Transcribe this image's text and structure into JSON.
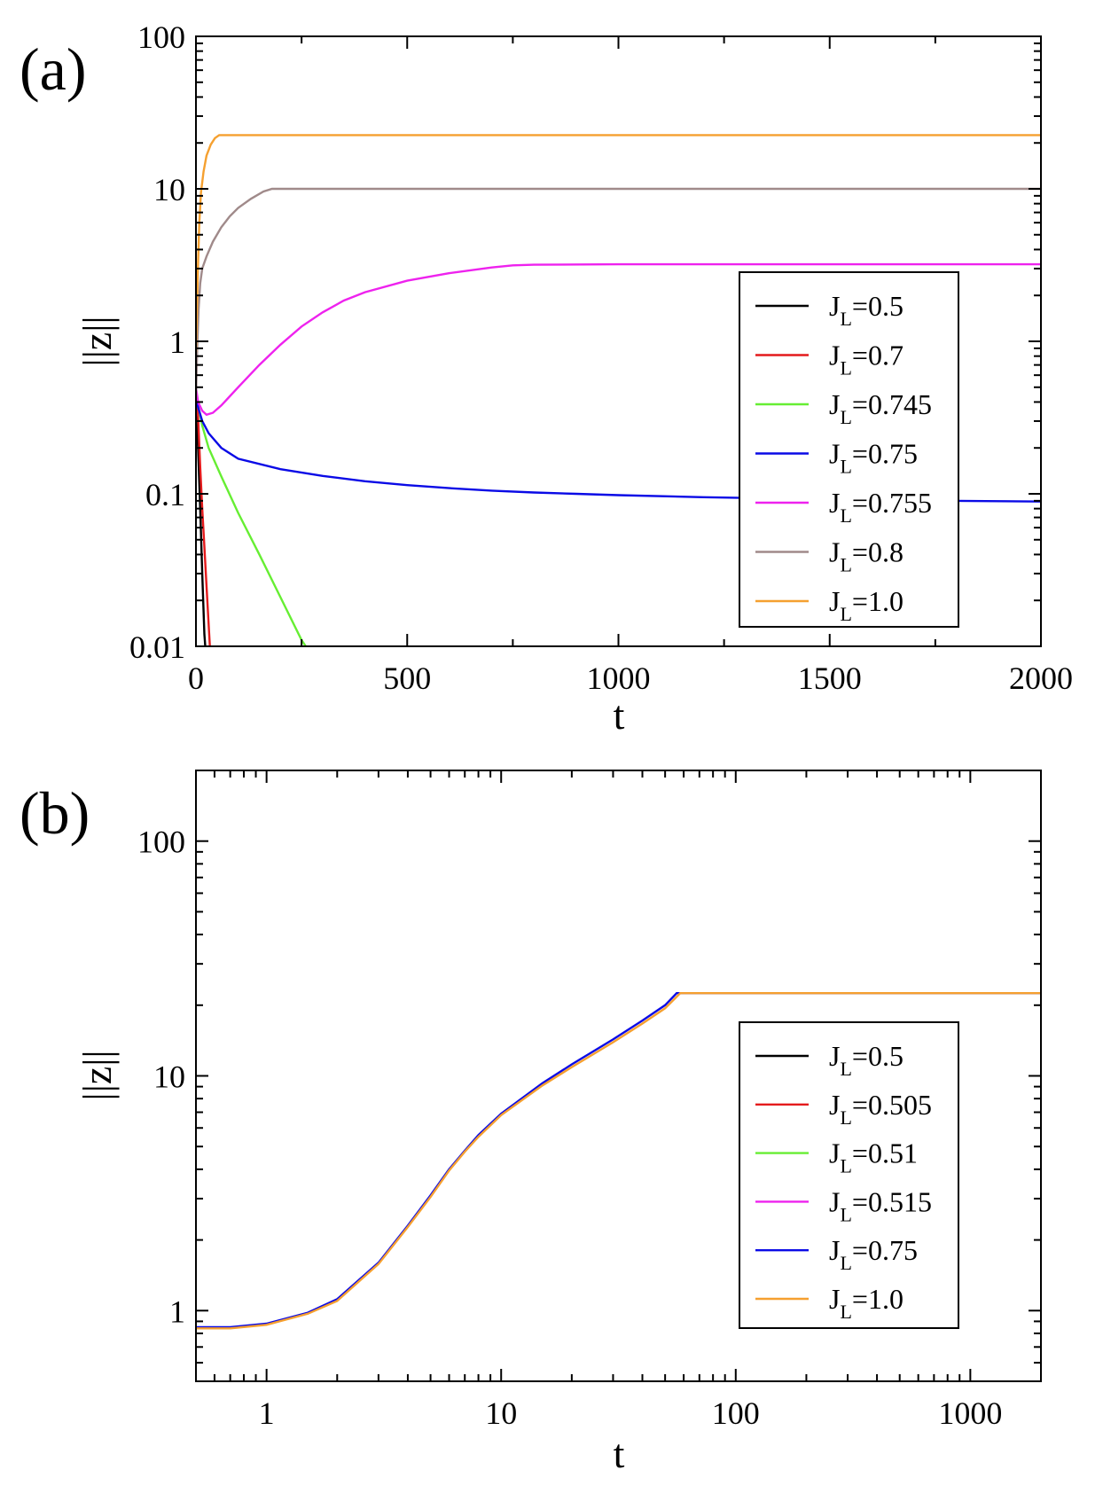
{
  "chart_data": [
    {
      "panel_label": "(a)",
      "type": "line",
      "xlabel": "t",
      "ylabel": "||z||",
      "xscale": "linear",
      "yscale": "log",
      "xlim": [
        0,
        2000
      ],
      "ylim": [
        0.01,
        100
      ],
      "xticks": [
        0,
        500,
        1000,
        1500,
        2000
      ],
      "xtick_labels": [
        "0",
        "500",
        "1000",
        "1500",
        "2000"
      ],
      "yticks": [
        0.01,
        0.1,
        1,
        10,
        100
      ],
      "ytick_labels": [
        "0.01",
        "0.1",
        "1",
        "10",
        "100"
      ],
      "legend_position": "right",
      "series": [
        {
          "name": "J_L=0.5",
          "label_main": "J",
          "label_sub": "L",
          "label_val": "=0.5",
          "color": "#000000",
          "points": [
            [
              0,
              0.42
            ],
            [
              5,
              0.2
            ],
            [
              10,
              0.08
            ],
            [
              15,
              0.03
            ],
            [
              20,
              0.012
            ],
            [
              22,
              0.01
            ]
          ]
        },
        {
          "name": "J_L=0.7",
          "label_main": "J",
          "label_sub": "L",
          "label_val": "=0.7",
          "color": "#e41a1c",
          "points": [
            [
              0,
              0.42
            ],
            [
              5,
              0.32
            ],
            [
              10,
              0.15
            ],
            [
              15,
              0.08
            ],
            [
              20,
              0.045
            ],
            [
              25,
              0.025
            ],
            [
              30,
              0.014
            ],
            [
              33,
              0.01
            ]
          ]
        },
        {
          "name": "J_L=0.745",
          "label_main": "J",
          "label_sub": "L",
          "label_val": "=0.745",
          "color": "#66ee33",
          "points": [
            [
              0,
              0.42
            ],
            [
              5,
              0.38
            ],
            [
              15,
              0.28
            ],
            [
              30,
              0.2
            ],
            [
              60,
              0.13
            ],
            [
              100,
              0.075
            ],
            [
              150,
              0.04
            ],
            [
              200,
              0.021
            ],
            [
              250,
              0.011
            ],
            [
              260,
              0.01
            ]
          ]
        },
        {
          "name": "J_L=0.75",
          "label_main": "J",
          "label_sub": "L",
          "label_val": "=0.75",
          "color": "#0a0ae6",
          "points": [
            [
              0,
              0.42
            ],
            [
              5,
              0.37
            ],
            [
              15,
              0.3
            ],
            [
              30,
              0.25
            ],
            [
              60,
              0.2
            ],
            [
              100,
              0.17
            ],
            [
              200,
              0.145
            ],
            [
              300,
              0.131
            ],
            [
              400,
              0.121
            ],
            [
              500,
              0.114
            ],
            [
              600,
              0.109
            ],
            [
              700,
              0.105
            ],
            [
              800,
              0.102
            ],
            [
              900,
              0.1
            ],
            [
              1000,
              0.098
            ],
            [
              1200,
              0.095
            ],
            [
              1400,
              0.093
            ],
            [
              1600,
              0.091
            ],
            [
              1800,
              0.09
            ],
            [
              2000,
              0.089
            ]
          ]
        },
        {
          "name": "J_L=0.755",
          "label_main": "J",
          "label_sub": "L",
          "label_val": "=0.755",
          "color": "#ee22ee",
          "points": [
            [
              0,
              0.5
            ],
            [
              5,
              0.4
            ],
            [
              15,
              0.35
            ],
            [
              25,
              0.33
            ],
            [
              40,
              0.34
            ],
            [
              60,
              0.38
            ],
            [
              100,
              0.5
            ],
            [
              150,
              0.7
            ],
            [
              200,
              0.95
            ],
            [
              250,
              1.25
            ],
            [
              300,
              1.55
            ],
            [
              350,
              1.85
            ],
            [
              400,
              2.1
            ],
            [
              500,
              2.5
            ],
            [
              600,
              2.8
            ],
            [
              700,
              3.05
            ],
            [
              750,
              3.15
            ],
            [
              800,
              3.18
            ],
            [
              1000,
              3.2
            ],
            [
              2000,
              3.2
            ]
          ]
        },
        {
          "name": "J_L=0.8",
          "label_main": "J",
          "label_sub": "L",
          "label_val": "=0.8",
          "color": "#a08a8a",
          "points": [
            [
              0,
              0.42
            ],
            [
              3,
              0.9
            ],
            [
              6,
              1.6
            ],
            [
              10,
              2.4
            ],
            [
              15,
              3.0
            ],
            [
              25,
              3.6
            ],
            [
              40,
              4.5
            ],
            [
              60,
              5.6
            ],
            [
              80,
              6.6
            ],
            [
              100,
              7.5
            ],
            [
              130,
              8.6
            ],
            [
              160,
              9.6
            ],
            [
              180,
              10
            ],
            [
              2000,
              10
            ]
          ]
        },
        {
          "name": "J_L=1.0",
          "label_main": "J",
          "label_sub": "L",
          "label_val": "=1.0",
          "color": "#f5a030",
          "points": [
            [
              0,
              0.85
            ],
            [
              2,
              1.5
            ],
            [
              5,
              3.3
            ],
            [
              8,
              6
            ],
            [
              12,
              9.5
            ],
            [
              18,
              13
            ],
            [
              25,
              16.5
            ],
            [
              35,
              19.5
            ],
            [
              45,
              21.5
            ],
            [
              55,
              22.5
            ],
            [
              2000,
              22.5
            ]
          ]
        }
      ]
    },
    {
      "panel_label": "(b)",
      "type": "line",
      "xlabel": "t",
      "ylabel": "||z||",
      "xscale": "log",
      "yscale": "log",
      "xlim": [
        0.5,
        2000
      ],
      "ylim": [
        0.5,
        200
      ],
      "xticks": [
        1,
        10,
        100,
        1000
      ],
      "xtick_labels": [
        "1",
        "10",
        "100",
        "1000"
      ],
      "yticks": [
        1,
        10,
        100
      ],
      "ytick_labels": [
        "1",
        "10",
        "100"
      ],
      "legend_position": "right",
      "series": [
        {
          "name": "J_L=0.5",
          "label_main": "J",
          "label_sub": "L",
          "label_val": "=0.5",
          "color": "#000000"
        },
        {
          "name": "J_L=0.505",
          "label_main": "J",
          "label_sub": "L",
          "label_val": "=0.505",
          "color": "#e41a1c"
        },
        {
          "name": "J_L=0.51",
          "label_main": "J",
          "label_sub": "L",
          "label_val": "=0.51",
          "color": "#66ee33"
        },
        {
          "name": "J_L=0.515",
          "label_main": "J",
          "label_sub": "L",
          "label_val": "=0.515",
          "color": "#ee22ee"
        },
        {
          "name": "J_L=0.75",
          "label_main": "J",
          "label_sub": "L",
          "label_val": "=0.75",
          "color": "#0a0ae6",
          "points": [
            [
              0.5,
              0.85
            ],
            [
              0.7,
              0.85
            ],
            [
              1,
              0.88
            ],
            [
              1.5,
              0.98
            ],
            [
              2,
              1.12
            ],
            [
              3,
              1.6
            ],
            [
              4,
              2.3
            ],
            [
              5,
              3.1
            ],
            [
              6,
              4.0
            ],
            [
              7,
              4.8
            ],
            [
              8,
              5.6
            ],
            [
              10,
              6.9
            ],
            [
              15,
              9.3
            ],
            [
              20,
              11.2
            ],
            [
              30,
              14.3
            ],
            [
              40,
              17.2
            ],
            [
              50,
              20.0
            ],
            [
              56,
              22.5
            ],
            [
              2000,
              22.5
            ]
          ]
        },
        {
          "name": "J_L=1.0",
          "label_main": "J",
          "label_sub": "L",
          "label_val": "=1.0",
          "color": "#f5a030",
          "points": [
            [
              0.5,
              0.84
            ],
            [
              0.7,
              0.84
            ],
            [
              1,
              0.87
            ],
            [
              1.5,
              0.97
            ],
            [
              2,
              1.1
            ],
            [
              3,
              1.58
            ],
            [
              4,
              2.27
            ],
            [
              5,
              3.05
            ],
            [
              6,
              3.95
            ],
            [
              7,
              4.75
            ],
            [
              8,
              5.5
            ],
            [
              10,
              6.8
            ],
            [
              15,
              9.1
            ],
            [
              20,
              10.9
            ],
            [
              30,
              13.9
            ],
            [
              40,
              16.7
            ],
            [
              50,
              19.4
            ],
            [
              58,
              22.5
            ],
            [
              2000,
              22.5
            ]
          ]
        }
      ]
    }
  ]
}
